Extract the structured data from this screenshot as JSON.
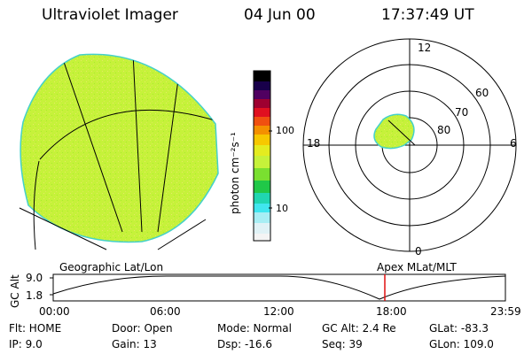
{
  "header": {
    "title": "Ultraviolet Imager",
    "date": "04 Jun 00",
    "time": "17:37:49 UT"
  },
  "colorbar": {
    "unit_label": "photon cm⁻²s⁻¹",
    "ticks": [
      "100",
      "10"
    ]
  },
  "polar_plot": {
    "mlt_labels": [
      "12",
      "18",
      "6",
      "0"
    ],
    "lat_labels": [
      "60",
      "70",
      "80"
    ]
  },
  "timeline": {
    "ylabel": "GC Alt",
    "y_ticks": [
      "9.0",
      "1.8"
    ],
    "left_title": "Geographic Lat/Lon",
    "right_title": "Apex MLat/MLT",
    "x_ticks": [
      "00:00",
      "06:00",
      "12:00",
      "18:00",
      "23:59"
    ]
  },
  "status": {
    "flt": "Flt: HOME",
    "ip": "IP:  9.0",
    "door": "Door: Open",
    "gain": "Gain: 13",
    "mode": "Mode: Normal",
    "dsp": "Dsp:  -16.6",
    "gc_alt": "GC Alt: 2.4 Re",
    "seq": "Seq: 39",
    "glat": "GLat: -83.3",
    "glon": "GLon: 109.0"
  },
  "colors": {
    "image_fill": "#c6f23a",
    "image_edge": "#45d1c9",
    "marker": "#e01010"
  }
}
